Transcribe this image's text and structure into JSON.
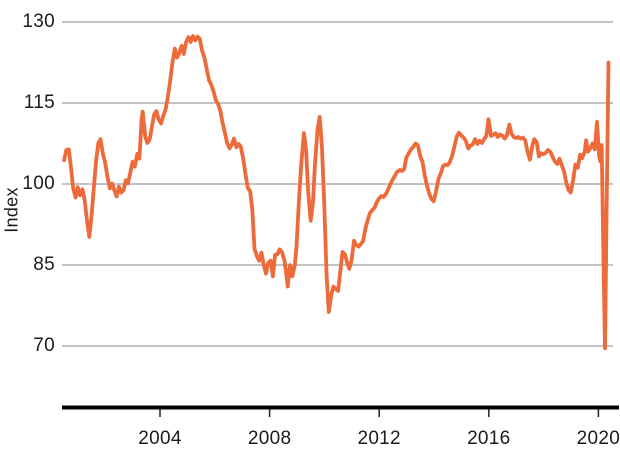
{
  "chart_data": {
    "type": "line",
    "title": "",
    "subtitle": "",
    "xlabel": "",
    "ylabel": "Index",
    "y_ticks": [
      130,
      115,
      100,
      85,
      70
    ],
    "x_ticks": [
      2004,
      2008,
      2012,
      2016,
      2020
    ],
    "ylim": [
      70,
      130
    ],
    "xlim": [
      2000.5,
      2020.45
    ],
    "grid": true,
    "legend": false,
    "series": [
      {
        "name": "index-line",
        "color": "#ED6A3A",
        "points": [
          [
            2000.5,
            104.4
          ],
          [
            2000.58,
            106.3
          ],
          [
            2000.67,
            106.4
          ],
          [
            2000.75,
            103.0
          ],
          [
            2000.83,
            99.3
          ],
          [
            2000.92,
            97.5
          ],
          [
            2001.0,
            99.4
          ],
          [
            2001.08,
            97.9
          ],
          [
            2001.17,
            99.0
          ],
          [
            2001.25,
            97.0
          ],
          [
            2001.33,
            93.5
          ],
          [
            2001.42,
            90.2
          ],
          [
            2001.5,
            94.0
          ],
          [
            2001.58,
            99.0
          ],
          [
            2001.67,
            104.5
          ],
          [
            2001.75,
            107.5
          ],
          [
            2001.83,
            108.3
          ],
          [
            2001.92,
            105.5
          ],
          [
            2002.0,
            103.9
          ],
          [
            2002.08,
            101.4
          ],
          [
            2002.17,
            99.2
          ],
          [
            2002.25,
            100.1
          ],
          [
            2002.33,
            98.9
          ],
          [
            2002.42,
            97.7
          ],
          [
            2002.5,
            99.5
          ],
          [
            2002.58,
            98.4
          ],
          [
            2002.67,
            98.9
          ],
          [
            2002.75,
            100.7
          ],
          [
            2002.83,
            100.1
          ],
          [
            2002.92,
            102.2
          ],
          [
            2003.0,
            104.1
          ],
          [
            2003.08,
            103.2
          ],
          [
            2003.17,
            105.6
          ],
          [
            2003.25,
            104.7
          ],
          [
            2003.33,
            111.9
          ],
          [
            2003.37,
            113.4
          ],
          [
            2003.46,
            108.8
          ],
          [
            2003.54,
            107.6
          ],
          [
            2003.62,
            108.2
          ],
          [
            2003.7,
            110.5
          ],
          [
            2003.79,
            112.9
          ],
          [
            2003.87,
            113.5
          ],
          [
            2003.95,
            112.0
          ],
          [
            2004.04,
            111.2
          ],
          [
            2004.12,
            112.6
          ],
          [
            2004.21,
            114.0
          ],
          [
            2004.29,
            116.2
          ],
          [
            2004.37,
            119.0
          ],
          [
            2004.45,
            122.3
          ],
          [
            2004.54,
            125.1
          ],
          [
            2004.62,
            123.4
          ],
          [
            2004.7,
            124.2
          ],
          [
            2004.79,
            125.6
          ],
          [
            2004.87,
            124.1
          ],
          [
            2004.95,
            126.2
          ],
          [
            2005.04,
            127.2
          ],
          [
            2005.12,
            126.3
          ],
          [
            2005.2,
            127.4
          ],
          [
            2005.29,
            126.6
          ],
          [
            2005.37,
            127.3
          ],
          [
            2005.45,
            126.9
          ],
          [
            2005.54,
            124.6
          ],
          [
            2005.62,
            123.4
          ],
          [
            2005.7,
            121.4
          ],
          [
            2005.79,
            119.2
          ],
          [
            2005.87,
            118.4
          ],
          [
            2005.95,
            117.2
          ],
          [
            2006.04,
            115.5
          ],
          [
            2006.12,
            114.8
          ],
          [
            2006.2,
            113.6
          ],
          [
            2006.29,
            111.2
          ],
          [
            2006.37,
            109.5
          ],
          [
            2006.45,
            107.6
          ],
          [
            2006.54,
            106.6
          ],
          [
            2006.62,
            107.3
          ],
          [
            2006.7,
            108.4
          ],
          [
            2006.79,
            106.8
          ],
          [
            2006.87,
            107.4
          ],
          [
            2006.95,
            106.9
          ],
          [
            2007.04,
            104.6
          ],
          [
            2007.12,
            101.8
          ],
          [
            2007.2,
            99.3
          ],
          [
            2007.29,
            98.7
          ],
          [
            2007.37,
            95.2
          ],
          [
            2007.45,
            88.0
          ],
          [
            2007.54,
            86.6
          ],
          [
            2007.62,
            85.8
          ],
          [
            2007.7,
            87.3
          ],
          [
            2007.79,
            85.0
          ],
          [
            2007.87,
            83.4
          ],
          [
            2007.95,
            85.4
          ],
          [
            2008.04,
            85.8
          ],
          [
            2008.12,
            82.9
          ],
          [
            2008.2,
            86.9
          ],
          [
            2008.29,
            87.0
          ],
          [
            2008.37,
            87.9
          ],
          [
            2008.45,
            87.4
          ],
          [
            2008.54,
            85.9
          ],
          [
            2008.62,
            83.0
          ],
          [
            2008.66,
            81.0
          ],
          [
            2008.75,
            85.0
          ],
          [
            2008.83,
            82.9
          ],
          [
            2008.92,
            85.0
          ],
          [
            2008.98,
            88.4
          ],
          [
            2009.08,
            97.9
          ],
          [
            2009.16,
            104.0
          ],
          [
            2009.25,
            109.4
          ],
          [
            2009.33,
            106.5
          ],
          [
            2009.41,
            98.5
          ],
          [
            2009.5,
            93.2
          ],
          [
            2009.58,
            96.5
          ],
          [
            2009.66,
            104.0
          ],
          [
            2009.75,
            110.0
          ],
          [
            2009.83,
            112.4
          ],
          [
            2009.91,
            107.0
          ],
          [
            2009.99,
            97.0
          ],
          [
            2010.08,
            83.0
          ],
          [
            2010.16,
            76.3
          ],
          [
            2010.25,
            79.5
          ],
          [
            2010.33,
            81.0
          ],
          [
            2010.41,
            80.6
          ],
          [
            2010.5,
            80.2
          ],
          [
            2010.58,
            83.8
          ],
          [
            2010.66,
            87.4
          ],
          [
            2010.75,
            87.0
          ],
          [
            2010.83,
            85.5
          ],
          [
            2010.91,
            84.3
          ],
          [
            2010.99,
            85.8
          ],
          [
            2011.08,
            89.5
          ],
          [
            2011.16,
            88.7
          ],
          [
            2011.25,
            88.4
          ],
          [
            2011.33,
            88.9
          ],
          [
            2011.41,
            89.4
          ],
          [
            2011.5,
            91.8
          ],
          [
            2011.58,
            93.3
          ],
          [
            2011.66,
            94.6
          ],
          [
            2011.75,
            95.2
          ],
          [
            2011.83,
            95.6
          ],
          [
            2011.91,
            96.6
          ],
          [
            2011.99,
            97.3
          ],
          [
            2012.08,
            97.8
          ],
          [
            2012.16,
            97.6
          ],
          [
            2012.25,
            98.2
          ],
          [
            2012.33,
            99.0
          ],
          [
            2012.41,
            100.0
          ],
          [
            2012.5,
            100.9
          ],
          [
            2012.58,
            101.6
          ],
          [
            2012.66,
            102.3
          ],
          [
            2012.75,
            102.6
          ],
          [
            2012.83,
            102.4
          ],
          [
            2012.91,
            102.7
          ],
          [
            2012.99,
            104.9
          ],
          [
            2013.08,
            105.7
          ],
          [
            2013.16,
            106.4
          ],
          [
            2013.25,
            106.9
          ],
          [
            2013.33,
            107.5
          ],
          [
            2013.41,
            107.2
          ],
          [
            2013.5,
            105.1
          ],
          [
            2013.58,
            104.1
          ],
          [
            2013.66,
            101.6
          ],
          [
            2013.75,
            99.6
          ],
          [
            2013.83,
            98.2
          ],
          [
            2013.91,
            97.2
          ],
          [
            2013.99,
            96.8
          ],
          [
            2014.08,
            98.8
          ],
          [
            2014.16,
            100.9
          ],
          [
            2014.25,
            102.0
          ],
          [
            2014.33,
            103.3
          ],
          [
            2014.41,
            103.6
          ],
          [
            2014.5,
            103.5
          ],
          [
            2014.58,
            104.1
          ],
          [
            2014.66,
            105.2
          ],
          [
            2014.75,
            107.1
          ],
          [
            2014.83,
            108.8
          ],
          [
            2014.91,
            109.5
          ],
          [
            2014.99,
            109.0
          ],
          [
            2015.08,
            108.6
          ],
          [
            2015.16,
            108.0
          ],
          [
            2015.25,
            106.6
          ],
          [
            2015.33,
            107.1
          ],
          [
            2015.41,
            107.3
          ],
          [
            2015.5,
            108.3
          ],
          [
            2015.58,
            107.4
          ],
          [
            2015.66,
            108.0
          ],
          [
            2015.75,
            107.6
          ],
          [
            2015.83,
            108.3
          ],
          [
            2015.91,
            108.9
          ],
          [
            2015.99,
            112.0
          ],
          [
            2016.08,
            108.9
          ],
          [
            2016.16,
            109.1
          ],
          [
            2016.25,
            109.4
          ],
          [
            2016.33,
            108.7
          ],
          [
            2016.41,
            109.2
          ],
          [
            2016.5,
            108.9
          ],
          [
            2016.58,
            108.4
          ],
          [
            2016.66,
            109.0
          ],
          [
            2016.75,
            111.0
          ],
          [
            2016.83,
            109.3
          ],
          [
            2016.91,
            108.7
          ],
          [
            2016.99,
            108.5
          ],
          [
            2017.08,
            108.7
          ],
          [
            2017.16,
            108.4
          ],
          [
            2017.25,
            108.6
          ],
          [
            2017.33,
            108.1
          ],
          [
            2017.41,
            106.1
          ],
          [
            2017.5,
            104.5
          ],
          [
            2017.58,
            106.9
          ],
          [
            2017.66,
            108.3
          ],
          [
            2017.75,
            107.7
          ],
          [
            2017.83,
            105.1
          ],
          [
            2017.91,
            105.7
          ],
          [
            2017.99,
            105.5
          ],
          [
            2018.08,
            105.8
          ],
          [
            2018.16,
            106.3
          ],
          [
            2018.25,
            105.9
          ],
          [
            2018.33,
            105.0
          ],
          [
            2018.41,
            104.2
          ],
          [
            2018.5,
            103.7
          ],
          [
            2018.58,
            104.7
          ],
          [
            2018.66,
            103.5
          ],
          [
            2018.75,
            102.3
          ],
          [
            2018.83,
            100.2
          ],
          [
            2018.91,
            98.9
          ],
          [
            2018.99,
            98.4
          ],
          [
            2019.08,
            100.8
          ],
          [
            2019.16,
            103.6
          ],
          [
            2019.25,
            103.0
          ],
          [
            2019.33,
            105.4
          ],
          [
            2019.41,
            104.8
          ],
          [
            2019.5,
            106.0
          ],
          [
            2019.55,
            108.1
          ],
          [
            2019.62,
            106.0
          ],
          [
            2019.7,
            106.6
          ],
          [
            2019.79,
            107.5
          ],
          [
            2019.87,
            106.4
          ],
          [
            2019.95,
            111.5
          ],
          [
            2020.03,
            105.0
          ],
          [
            2020.07,
            104.2
          ],
          [
            2020.12,
            107.2
          ],
          [
            2020.18,
            88.0
          ],
          [
            2020.24,
            69.6
          ],
          [
            2020.3,
            95.0
          ],
          [
            2020.37,
            122.5
          ]
        ]
      }
    ],
    "style": {
      "line_color": "#ED6A3A",
      "grid_color": "#878787",
      "axis_color": "#000000",
      "label_color": "#1c1c1c",
      "background": "#FFFFFF"
    }
  }
}
